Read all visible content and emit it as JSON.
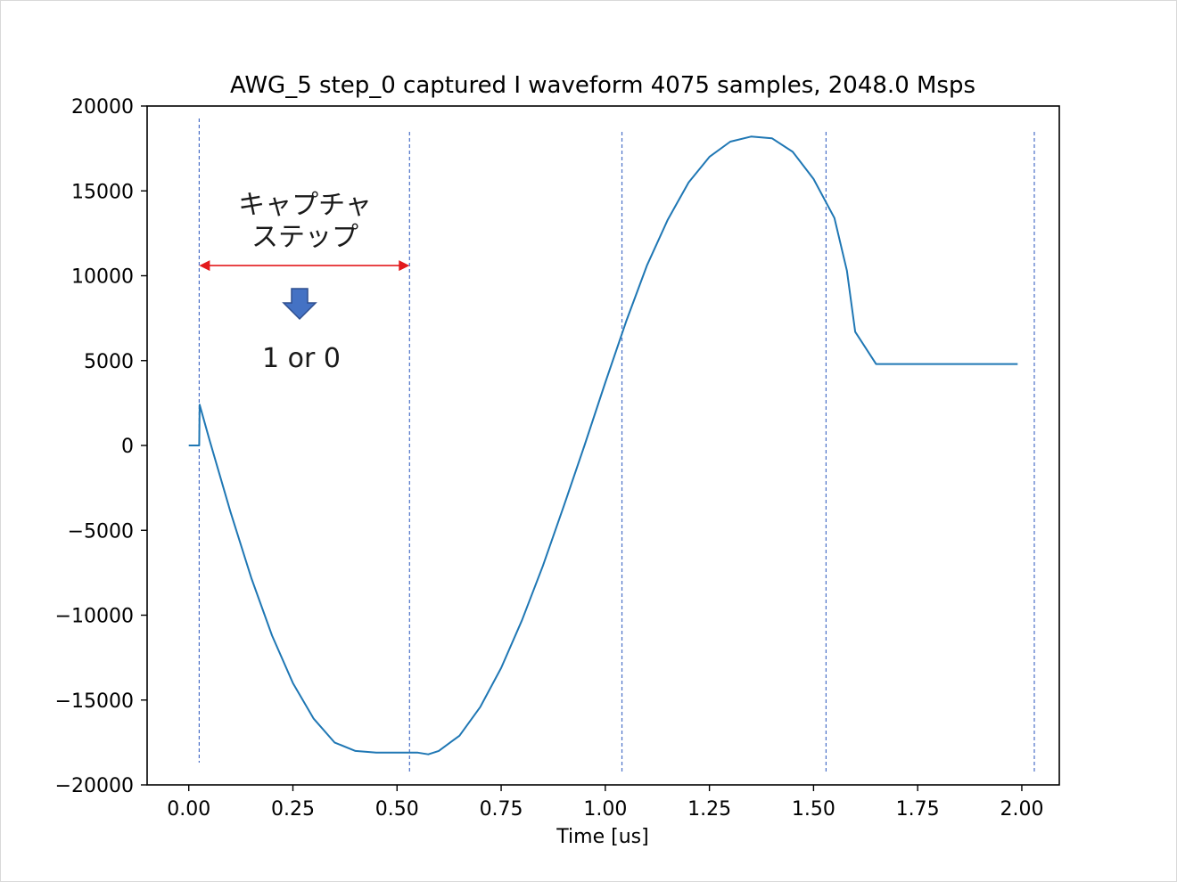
{
  "chart_data": {
    "type": "line",
    "title": "AWG_5 step_0 captured I waveform 4075 samples, 2048.0 Msps",
    "xlabel": "Time [us]",
    "ylabel": "",
    "xlim": [
      -0.1,
      2.09
    ],
    "ylim": [
      -20000,
      20000
    ],
    "x_ticks": [
      "0.00",
      "0.25",
      "0.50",
      "0.75",
      "1.00",
      "1.25",
      "1.50",
      "1.75",
      "2.00"
    ],
    "x_tick_values": [
      0,
      0.25,
      0.5,
      0.75,
      1.0,
      1.25,
      1.5,
      1.75,
      2.0
    ],
    "y_ticks": [
      "20000",
      "15000",
      "10000",
      "5000",
      "0",
      "−5000",
      "−10000",
      "−15000",
      "−20000"
    ],
    "y_tick_values": [
      20000,
      15000,
      10000,
      5000,
      0,
      -5000,
      -10000,
      -15000,
      -20000
    ],
    "grid": false,
    "series": [
      {
        "color": "#1f77b4",
        "x": [
          0.0,
          0.025,
          0.026,
          0.05,
          0.1,
          0.15,
          0.2,
          0.25,
          0.3,
          0.35,
          0.4,
          0.45,
          0.5,
          0.55,
          0.575,
          0.6,
          0.65,
          0.7,
          0.75,
          0.8,
          0.85,
          0.9,
          0.95,
          1.0,
          1.05,
          1.1,
          1.15,
          1.2,
          1.25,
          1.3,
          1.35,
          1.4,
          1.45,
          1.5,
          1.55,
          1.58,
          1.6,
          1.65,
          1.7,
          1.75,
          1.8,
          1.85,
          1.9,
          1.95,
          1.99
        ],
        "y": [
          0,
          0,
          2400,
          300,
          -3900,
          -7800,
          -11200,
          -14000,
          -16100,
          -17500,
          -18000,
          -18100,
          -18100,
          -18100,
          -18200,
          -18000,
          -17100,
          -15400,
          -13100,
          -10300,
          -7100,
          -3600,
          0,
          3700,
          7300,
          10600,
          13300,
          15500,
          17000,
          17900,
          18200,
          18100,
          17300,
          15700,
          13400,
          10300,
          6700,
          4800,
          4800,
          4800,
          4800,
          4800,
          4800,
          4800,
          4800
        ]
      }
    ],
    "vlines": {
      "color": "#4a6fc7",
      "x": [
        0.025,
        0.53,
        1.04,
        1.53,
        2.03
      ]
    },
    "annotations": {
      "capture_step_label_line1": "キャプチャ",
      "capture_step_label_line2": "ステップ",
      "result_label": "1 or 0",
      "arrow_color": "#e31a1c",
      "down_arrow_color": "#4472c4",
      "span_x": [
        0.025,
        0.53
      ],
      "span_y": 10600
    }
  }
}
